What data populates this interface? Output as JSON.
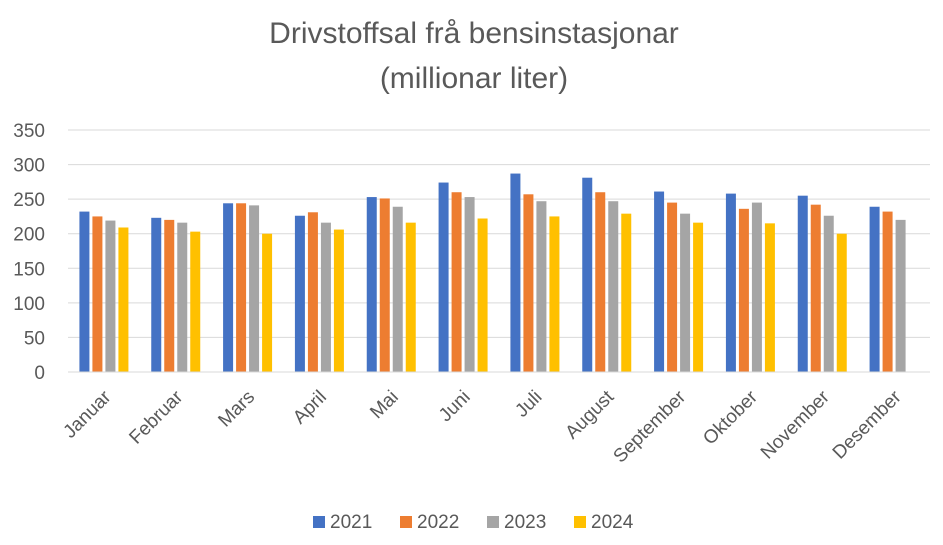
{
  "chart_data": {
    "type": "bar",
    "title": "Drivstoffsal frå bensinstasjonar",
    "subtitle": "(millionar liter)",
    "categories": [
      "Januar",
      "Februar",
      "Mars",
      "April",
      "Mai",
      "Juni",
      "Juli",
      "August",
      "September",
      "Oktober",
      "November",
      "Desember"
    ],
    "series": [
      {
        "name": "2021",
        "color": "#4472c4",
        "values": [
          232,
          223,
          244,
          226,
          253,
          274,
          287,
          281,
          261,
          258,
          255,
          239
        ]
      },
      {
        "name": "2022",
        "color": "#ed7d31",
        "values": [
          225,
          220,
          244,
          231,
          251,
          260,
          257,
          260,
          245,
          236,
          242,
          232
        ]
      },
      {
        "name": "2023",
        "color": "#a5a5a5",
        "values": [
          219,
          216,
          241,
          216,
          239,
          253,
          247,
          247,
          229,
          245,
          226,
          220
        ]
      },
      {
        "name": "2024",
        "color": "#ffc000",
        "values": [
          209,
          203,
          200,
          206,
          216,
          222,
          225,
          229,
          216,
          215,
          200,
          null
        ]
      }
    ],
    "ylim": [
      0,
      350
    ],
    "yticks": [
      "0",
      "50",
      "100",
      "150",
      "200",
      "250",
      "300",
      "350"
    ],
    "xlabel": "",
    "ylabel": "",
    "grid": true,
    "legend_position": "bottom"
  }
}
